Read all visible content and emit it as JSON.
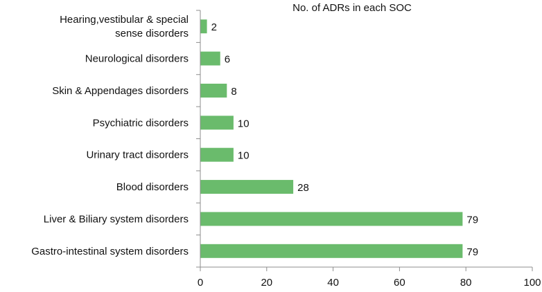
{
  "chart_data": {
    "type": "bar",
    "orientation": "horizontal",
    "title": "No. of ADRs in each SOC",
    "categories": [
      [
        "Hearing,vestibular & special",
        "sense disorders"
      ],
      [
        "Neurological disorders"
      ],
      [
        "Skin & Appendages disorders"
      ],
      [
        "Psychiatric disorders"
      ],
      [
        "Urinary tract disorders"
      ],
      [
        "Blood disorders"
      ],
      [
        "Liver & Biliary system disorders"
      ],
      [
        "Gastro-intestinal system disorders"
      ]
    ],
    "values": [
      2,
      6,
      8,
      10,
      10,
      28,
      79,
      79
    ],
    "data_labels": [
      "2",
      "6",
      "8",
      "10",
      "10",
      "28",
      "79",
      "79"
    ],
    "xlim": [
      0,
      100
    ],
    "x_ticks": [
      0,
      20,
      40,
      60,
      80,
      100
    ],
    "x_tick_labels": [
      "0",
      "20",
      "40",
      "60",
      "80",
      "100"
    ],
    "bar_color": "#6abb6c",
    "grid": false,
    "legend": "none"
  }
}
